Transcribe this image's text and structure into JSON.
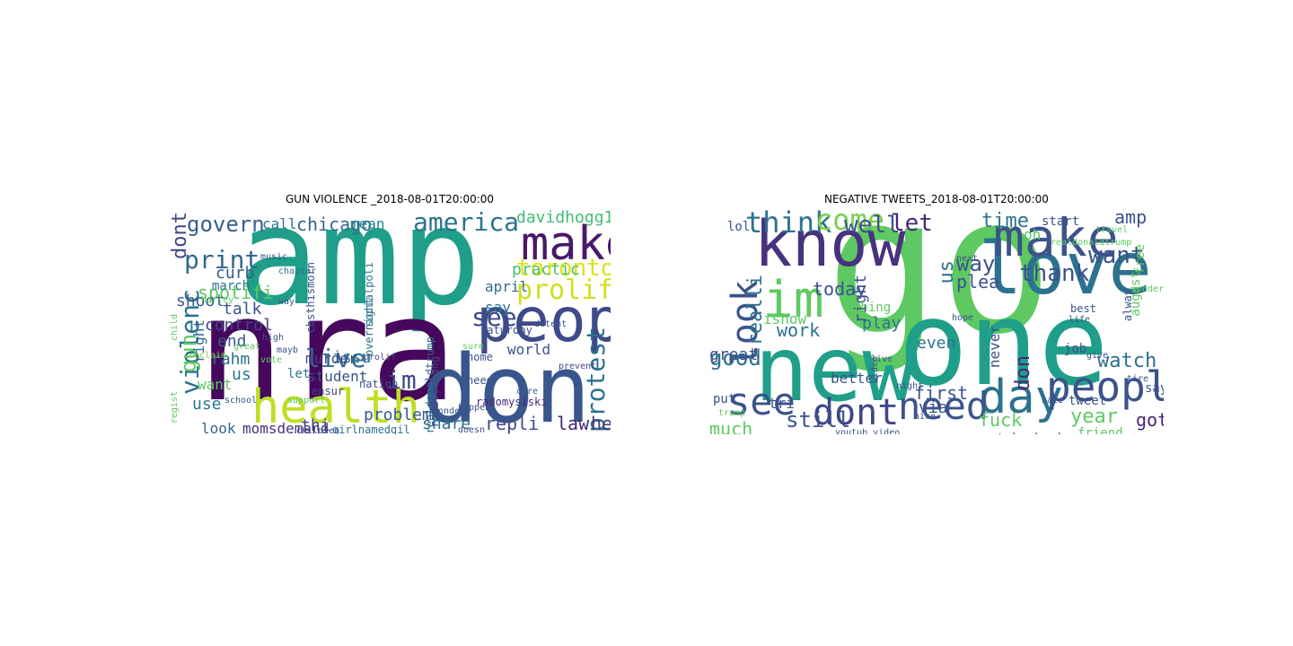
{
  "panels": [
    {
      "title": "GUN VIOLENCE _2018-08-01T20:00:00",
      "words": [
        {
          "text": "amp",
          "color": "#1f9e89"
        },
        {
          "text": "nra",
          "color": "#46085c"
        },
        {
          "text": "health",
          "color": "#bddf26"
        },
        {
          "text": "don",
          "color": "#39568c"
        },
        {
          "text": "peopl",
          "color": "#3e4a89"
        },
        {
          "text": "make",
          "color": "#48186a"
        },
        {
          "text": "prolifei",
          "color": "#d0e11c"
        },
        {
          "text": "toronto",
          "color": "#dde318"
        },
        {
          "text": "america",
          "color": "#2c728e"
        },
        {
          "text": "govern",
          "color": "#355f8d"
        },
        {
          "text": "chicago",
          "color": "#31688e"
        },
        {
          "text": "davidhogg111",
          "color": "#3fbc73"
        },
        {
          "text": "violenc",
          "color": "#2c728e"
        },
        {
          "text": "gun",
          "color": "#5ec962"
        },
        {
          "text": "dont",
          "color": "#3f4788"
        },
        {
          "text": "print",
          "color": "#31688e"
        },
        {
          "text": "spotifi",
          "color": "#5ec962"
        },
        {
          "text": "live",
          "color": "#31688e"
        },
        {
          "text": "protest",
          "color": "#2c728e"
        },
        {
          "text": "see",
          "color": "#3e4a89"
        },
        {
          "text": "im",
          "color": "#3f4788"
        },
        {
          "text": "issu",
          "color": "#287d8e"
        },
        {
          "text": "problem",
          "color": "#38588c"
        },
        {
          "text": "repli",
          "color": "#3e4a89"
        },
        {
          "text": "law",
          "color": "#482677"
        },
        {
          "text": "hey",
          "color": "#453781"
        },
        {
          "text": "share",
          "color": "#2c728e"
        },
        {
          "text": "world",
          "color": "#3b528b"
        },
        {
          "text": "use",
          "color": "#2a788e"
        },
        {
          "text": "look",
          "color": "#31688e"
        },
        {
          "text": "momsdemand",
          "color": "#46327e"
        },
        {
          "text": "thi",
          "color": "#433e85"
        },
        {
          "text": "rahm",
          "color": "#2c728e"
        },
        {
          "text": "us",
          "color": "#2a788e"
        },
        {
          "text": "end",
          "color": "#365c8d"
        },
        {
          "text": "shoot",
          "color": "#38598c"
        },
        {
          "text": "talk",
          "color": "#3b528b"
        },
        {
          "text": "control",
          "color": "#404688"
        },
        {
          "text": "march",
          "color": "#2c728e"
        },
        {
          "text": "curb",
          "color": "#365c8d"
        },
        {
          "text": "call",
          "color": "#2c728e"
        },
        {
          "text": "mean",
          "color": "#25858e"
        },
        {
          "text": "practic",
          "color": "#4ac16d"
        },
        {
          "text": "april",
          "color": "#2e6e8e"
        },
        {
          "text": "say",
          "color": "#2c728e"
        },
        {
          "text": "student",
          "color": "#3b528b"
        },
        {
          "text": "let",
          "color": "#2c728e"
        },
        {
          "text": "want",
          "color": "#5ec962"
        },
        {
          "text": "right",
          "color": "#31688e"
        },
        {
          "text": "murder",
          "color": "#404688"
        },
        {
          "text": "girlnamedgil",
          "color": "#2c728e"
        },
        {
          "text": "realdonaldtrump",
          "color": "#2c728e"
        },
        {
          "text": "radomysiski",
          "color": "#482677"
        },
        {
          "text": "cbsthismorn",
          "color": "#3b528b"
        },
        {
          "text": "socialpoli",
          "color": "#2a788e"
        },
        {
          "text": "overnight",
          "color": "#2c728e"
        },
        {
          "text": "saturday",
          "color": "#3b528b"
        },
        {
          "text": "nation",
          "color": "#3b528b"
        },
        {
          "text": "ensur",
          "color": "#404688"
        },
        {
          "text": "school",
          "color": "#3b528b"
        },
        {
          "text": "vote",
          "color": "#5ec962"
        },
        {
          "text": "music",
          "color": "#3b528b"
        },
        {
          "text": "chapter",
          "color": "#2c728e"
        },
        {
          "text": "children",
          "color": "#3b528b"
        },
        {
          "text": "reclaim",
          "color": "#7ad151"
        },
        {
          "text": "support",
          "color": "#5ec962"
        },
        {
          "text": "prevent",
          "color": "#404688"
        },
        {
          "text": "happen",
          "color": "#3b528b"
        },
        {
          "text": "home",
          "color": "#3b528b"
        },
        {
          "text": "need",
          "color": "#3b528b"
        },
        {
          "text": "roadtochang",
          "color": "#404688"
        },
        {
          "text": "sure",
          "color": "#5ec962"
        },
        {
          "text": "detent",
          "color": "#3b528b"
        },
        {
          "text": "high",
          "color": "#3b528b"
        },
        {
          "text": "great",
          "color": "#5ec962"
        },
        {
          "text": "child",
          "color": "#5ec962"
        },
        {
          "text": "harley",
          "color": "#5ec962"
        },
        {
          "text": "prolif",
          "color": "#404688"
        },
        {
          "text": "way",
          "color": "#3b528b"
        },
        {
          "text": "mayb",
          "color": "#3b528b"
        },
        {
          "text": "wonder",
          "color": "#3b528b"
        },
        {
          "text": "care",
          "color": "#3b528b"
        },
        {
          "text": "regist",
          "color": "#5ec962"
        },
        {
          "text": "doesn",
          "color": "#3b528b"
        }
      ]
    },
    {
      "title": "NEGATIVE TWEETS_2018-08-01T20:00:00",
      "words": [
        {
          "text": "go",
          "color": "#5ec962"
        },
        {
          "text": "one",
          "color": "#1f9e89"
        },
        {
          "text": "new",
          "color": "#1f9e89"
        },
        {
          "text": "love",
          "color": "#2c728e"
        },
        {
          "text": "know",
          "color": "#46327e"
        },
        {
          "text": "make",
          "color": "#3b528b"
        },
        {
          "text": "day",
          "color": "#2c728e"
        },
        {
          "text": "peopl",
          "color": "#3b528b"
        },
        {
          "text": "dont",
          "color": "#404688"
        },
        {
          "text": "need",
          "color": "#3b528b"
        },
        {
          "text": "see",
          "color": "#3b528b"
        },
        {
          "text": "im",
          "color": "#5ec962"
        },
        {
          "text": "look",
          "color": "#3b528b"
        },
        {
          "text": "think",
          "color": "#2c728e"
        },
        {
          "text": "come",
          "color": "#7ad151"
        },
        {
          "text": "well",
          "color": "#3b528b"
        },
        {
          "text": "let",
          "color": "#482677"
        },
        {
          "text": "time",
          "color": "#2c728e"
        },
        {
          "text": "want",
          "color": "#3b528b"
        },
        {
          "text": "thank",
          "color": "#3b528b"
        },
        {
          "text": "amp",
          "color": "#3b528b"
        },
        {
          "text": "way",
          "color": "#3b528b"
        },
        {
          "text": "us",
          "color": "#2c728e"
        },
        {
          "text": "plea",
          "color": "#3b528b"
        },
        {
          "text": "realli",
          "color": "#2c728e"
        },
        {
          "text": "today",
          "color": "#3b528b"
        },
        {
          "text": "work",
          "color": "#2c728e"
        },
        {
          "text": "good",
          "color": "#2c728e"
        },
        {
          "text": "great",
          "color": "#3b528b"
        },
        {
          "text": "play",
          "color": "#2c728e"
        },
        {
          "text": "even",
          "color": "#2c728e"
        },
        {
          "text": "never",
          "color": "#3b528b"
        },
        {
          "text": "don",
          "color": "#482677"
        },
        {
          "text": "watch",
          "color": "#2c728e"
        },
        {
          "text": "first",
          "color": "#3b528b"
        },
        {
          "text": "via",
          "color": "#3b528b"
        },
        {
          "text": "fuck",
          "color": "#5ec962"
        },
        {
          "text": "still",
          "color": "#3b528b"
        },
        {
          "text": "much",
          "color": "#5ec962"
        },
        {
          "text": "year",
          "color": "#5ec962"
        },
        {
          "text": "got",
          "color": "#482677"
        },
        {
          "text": "tri",
          "color": "#3b528b"
        },
        {
          "text": "better",
          "color": "#3b528b"
        },
        {
          "text": "put",
          "color": "#3b528b"
        },
        {
          "text": "lol",
          "color": "#3b528b"
        },
        {
          "text": "ishow",
          "color": "#5ec962"
        },
        {
          "text": "right",
          "color": "#3b528b"
        },
        {
          "text": "thing",
          "color": "#5ec962"
        },
        {
          "text": "take back",
          "color": "#3b528b"
        },
        {
          "text": "friend",
          "color": "#5ec962"
        },
        {
          "text": "tweet",
          "color": "#3b528b"
        },
        {
          "text": "job",
          "color": "#3b528b"
        },
        {
          "text": "say",
          "color": "#3b528b"
        },
        {
          "text": "august",
          "color": "#5ec962"
        },
        {
          "text": "free",
          "color": "#5ec962"
        },
        {
          "text": "alway",
          "color": "#3b528b"
        },
        {
          "text": "start",
          "color": "#3b528b"
        },
        {
          "text": "oh",
          "color": "#5ec962"
        },
        {
          "text": "best",
          "color": "#3b528b"
        },
        {
          "text": "travel",
          "color": "#5ec962"
        },
        {
          "text": "realdonaldtrump",
          "color": "#5ec962"
        },
        {
          "text": "life",
          "color": "#3b528b"
        },
        {
          "text": "hope",
          "color": "#3b528b"
        },
        {
          "text": "live",
          "color": "#3b528b"
        },
        {
          "text": "next",
          "color": "#3b528b"
        },
        {
          "text": "video",
          "color": "#3b528b"
        },
        {
          "text": "trump",
          "color": "#5ec962"
        },
        {
          "text": "youtub video",
          "color": "#3b528b"
        },
        {
          "text": "night",
          "color": "#3b528b"
        },
        {
          "text": "nice",
          "color": "#3b528b"
        },
        {
          "text": "give",
          "color": "#3b528b"
        },
        {
          "text": "hate",
          "color": "#3b528b"
        },
        {
          "text": "tire",
          "color": "#3b528b"
        },
        {
          "text": "wonder",
          "color": "#5ec962"
        }
      ]
    }
  ]
}
